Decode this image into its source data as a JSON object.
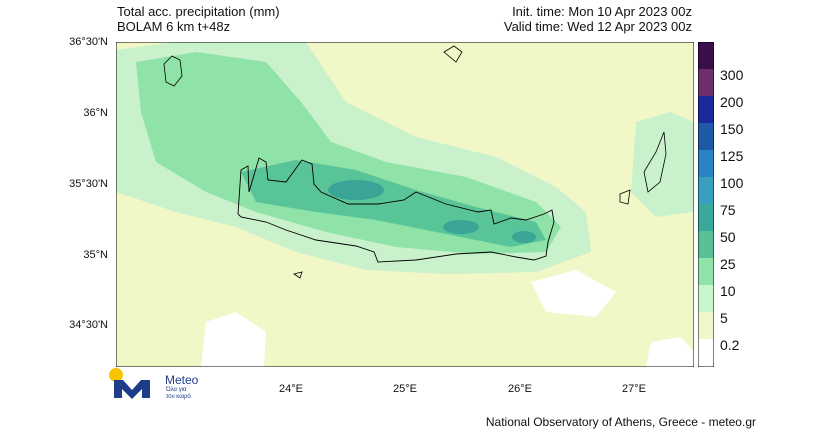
{
  "header": {
    "title_line1": "Total acc. precipitation (mm)",
    "title_line2": "BOLAM 6 km t+48z",
    "init_time": "Init. time: Mon 10 Apr 2023 00z",
    "valid_time": "Valid time: Wed 12 Apr 2023 00z"
  },
  "axes": {
    "lat_labels": [
      "36°30'N",
      "36°N",
      "35°30'N",
      "35°N",
      "34°30'N"
    ],
    "lon_labels": [
      "24°E",
      "25°E",
      "26°E",
      "27°E"
    ]
  },
  "colorbar": {
    "labels": [
      "300",
      "200",
      "150",
      "125",
      "100",
      "75",
      "50",
      "25",
      "10",
      "5",
      "0.2"
    ],
    "colors": [
      "#3a0e4a",
      "#6e2e6a",
      "#1a2a9a",
      "#1f5aa8",
      "#2a83c4",
      "#3a9fbf",
      "#3aa89a",
      "#58bf96",
      "#8fe3a8",
      "#c9f5cf",
      "#f2f7c9",
      "#ffffff"
    ]
  },
  "map": {
    "background_color": "#f1f7c7",
    "light_green": "#c9f1cc",
    "medium_green": "#8fe3a8",
    "teal": "#59c498",
    "dark_teal": "#3aa497"
  },
  "logo": {
    "name": "Meteo",
    "sub1": "Όλα για",
    "sub2": "τον καιρό"
  },
  "footer": {
    "text": "National Observatory of Athens, Greece - meteo.gr"
  }
}
